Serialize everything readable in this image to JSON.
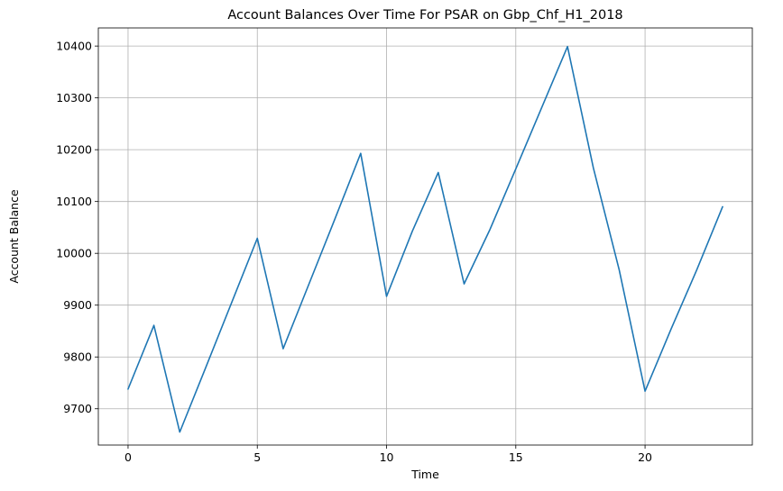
{
  "chart_data": {
    "type": "line",
    "title": "Account Balances Over Time For PSAR on Gbp_Chf_H1_2018",
    "xlabel": "Time",
    "ylabel": "Account Balance",
    "xlim": [
      -1.15,
      24.15
    ],
    "ylim": [
      9630,
      10435
    ],
    "xticks": [
      0,
      5,
      10,
      15,
      20
    ],
    "yticks": [
      9700,
      9800,
      9900,
      10000,
      10100,
      10200,
      10300,
      10400
    ],
    "grid": true,
    "colors": {
      "line": "#1f77b4",
      "grid": "#b0b0b0",
      "spine": "#000000"
    },
    "series": [
      {
        "x": [
          0,
          1,
          2,
          3,
          4,
          5,
          6,
          7,
          8,
          9,
          10,
          11,
          12,
          13,
          14,
          15,
          16,
          17,
          18,
          19,
          20,
          21,
          22,
          23
        ],
        "y": [
          9738,
          9861,
          9655,
          9779,
          9904,
          10029,
          9816,
          9941,
          10066,
          10193,
          9917,
          10043,
          10156,
          9941,
          10046,
          10163,
          10281,
          10399,
          10165,
          9968,
          9734,
          9853,
          9968,
          10090
        ]
      }
    ]
  }
}
